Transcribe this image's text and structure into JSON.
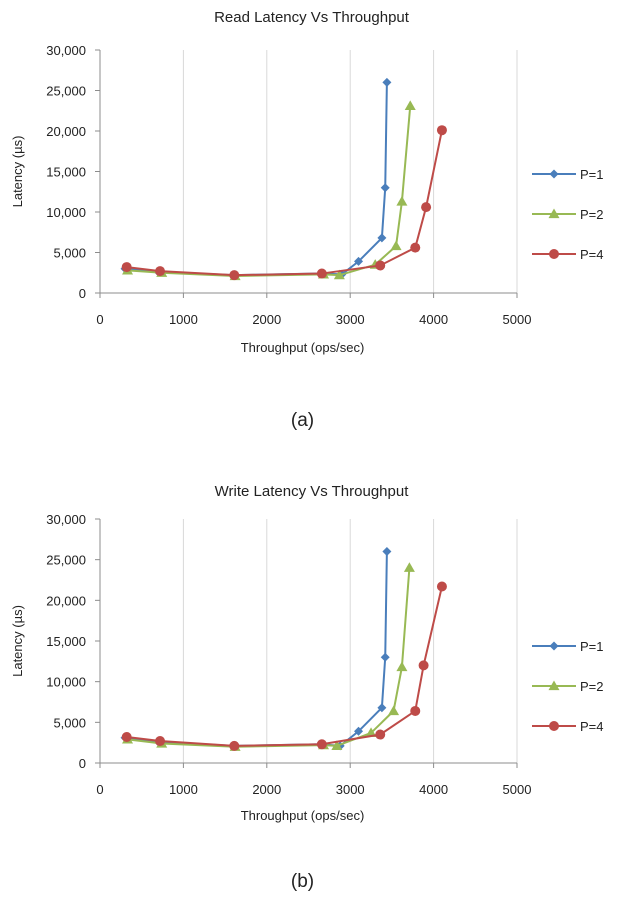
{
  "chart_data": [
    {
      "type": "line",
      "title": "Read Latency Vs Throughput",
      "xlabel": "Throughput (ops/sec)",
      "ylabel": "Latency (µs)",
      "caption": "(a)",
      "xlim": [
        0,
        5000
      ],
      "ylim": [
        0,
        30000
      ],
      "xticks": [
        "0",
        "1000",
        "2000",
        "3000",
        "4000",
        "5000"
      ],
      "yticks": [
        "0",
        "5,000",
        "10,000",
        "15,000",
        "20,000",
        "25,000",
        "30,000"
      ],
      "grid": "vertical",
      "legend_position": "right",
      "series": [
        {
          "name": "P=1",
          "color": "#4a7ebb",
          "marker": "diamond",
          "x": [
            300,
            700,
            1600,
            2650,
            2900,
            3100,
            3380,
            3420,
            3440
          ],
          "y": [
            3000,
            2600,
            2200,
            2400,
            2300,
            3900,
            6800,
            13000,
            26000
          ]
        },
        {
          "name": "P=2",
          "color": "#98b954",
          "marker": "triangle",
          "x": [
            330,
            740,
            1620,
            2680,
            2870,
            3300,
            3550,
            3620,
            3720
          ],
          "y": [
            2800,
            2500,
            2100,
            2300,
            2200,
            3500,
            5800,
            11300,
            23100
          ]
        },
        {
          "name": "P=4",
          "color": "#be4b48",
          "marker": "circle",
          "x": [
            320,
            720,
            1610,
            2660,
            3360,
            3780,
            3910,
            4100
          ],
          "y": [
            3200,
            2700,
            2200,
            2400,
            3400,
            5600,
            10600,
            20100
          ]
        }
      ]
    },
    {
      "type": "line",
      "title": "Write Latency Vs Throughput",
      "xlabel": "Throughput (ops/sec)",
      "ylabel": "Latency (µs)",
      "caption": "(b)",
      "xlim": [
        0,
        5000
      ],
      "ylim": [
        0,
        30000
      ],
      "xticks": [
        "0",
        "1000",
        "2000",
        "3000",
        "4000",
        "5000"
      ],
      "yticks": [
        "0",
        "5,000",
        "10,000",
        "15,000",
        "20,000",
        "25,000",
        "30,000"
      ],
      "grid": "vertical",
      "legend_position": "right",
      "series": [
        {
          "name": "P=1",
          "color": "#4a7ebb",
          "marker": "diamond",
          "x": [
            300,
            700,
            1600,
            2650,
            2880,
            3100,
            3380,
            3420,
            3440
          ],
          "y": [
            3100,
            2600,
            2100,
            2300,
            2100,
            3900,
            6800,
            13000,
            26000
          ]
        },
        {
          "name": "P=2",
          "color": "#98b954",
          "marker": "triangle",
          "x": [
            330,
            740,
            1620,
            2680,
            2840,
            3250,
            3520,
            3620,
            3710
          ],
          "y": [
            2900,
            2400,
            2000,
            2200,
            2100,
            3700,
            6400,
            11800,
            24000
          ]
        },
        {
          "name": "P=4",
          "color": "#be4b48",
          "marker": "circle",
          "x": [
            320,
            720,
            1610,
            2660,
            3360,
            3780,
            3880,
            4100
          ],
          "y": [
            3200,
            2700,
            2100,
            2300,
            3500,
            6400,
            12000,
            21700
          ]
        }
      ]
    }
  ]
}
